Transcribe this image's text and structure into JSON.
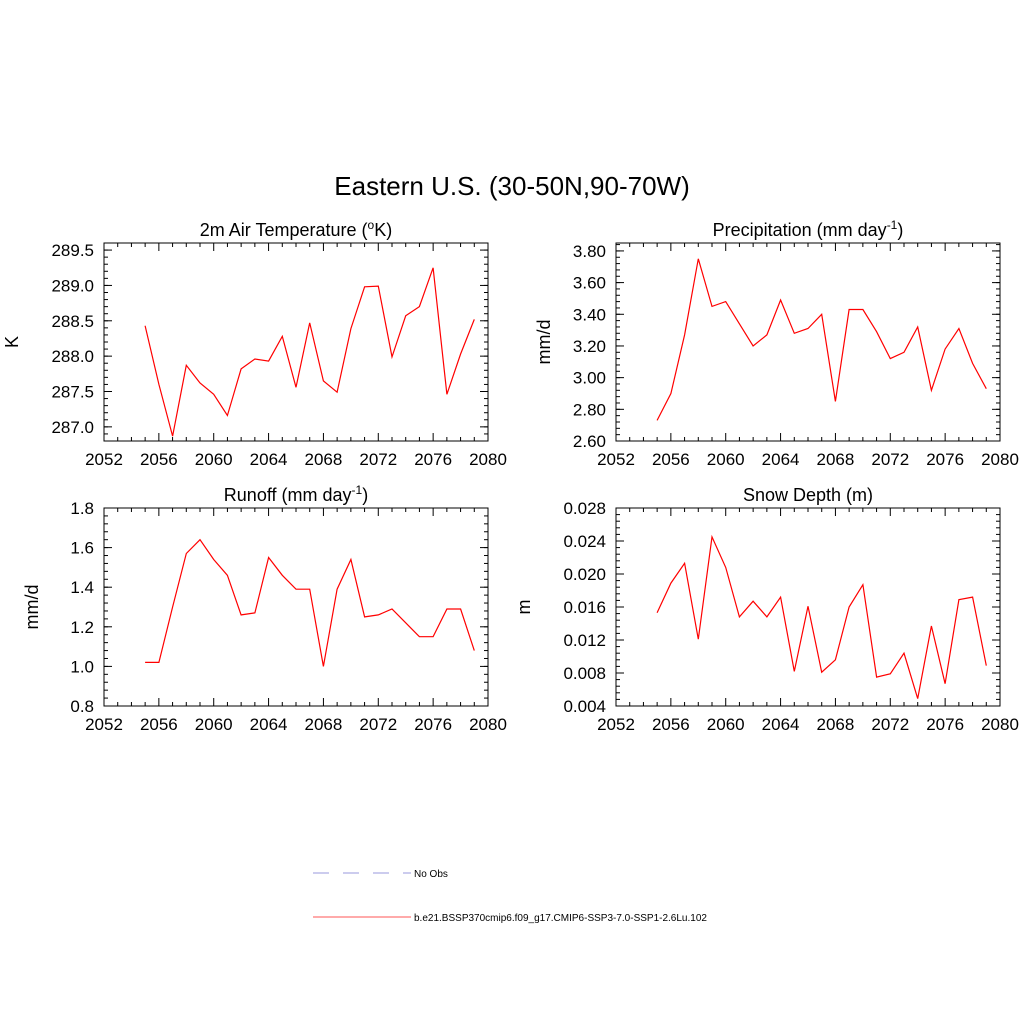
{
  "figure": {
    "title": "Eastern U.S. (30-50N,90-70W)"
  },
  "chart_data": [
    {
      "type": "line",
      "title": "2m Air Temperature (",
      "title_sup": "o",
      "title_tail": "K)",
      "ylabel": "K",
      "xlim": [
        2052,
        2080
      ],
      "ylim": [
        286.8,
        289.6
      ],
      "xticks": [
        2052,
        2056,
        2060,
        2064,
        2068,
        2072,
        2076,
        2080
      ],
      "xtick_labels": [
        "2052",
        "2056",
        "2060",
        "2064",
        "2068",
        "2072",
        "2076",
        "2080"
      ],
      "yticks": [
        287.0,
        287.5,
        288.0,
        288.5,
        289.0,
        289.5
      ],
      "ytick_labels": [
        "287.0",
        "287.5",
        "288.0",
        "288.5",
        "289.0",
        "289.5"
      ],
      "series": [
        {
          "color": "#ff0000",
          "x": [
            2055,
            2056,
            2057,
            2058,
            2059,
            2060,
            2061,
            2062,
            2063,
            2064,
            2065,
            2066,
            2067,
            2068,
            2069,
            2070,
            2071,
            2072,
            2073,
            2074,
            2075,
            2076,
            2077,
            2078,
            2079
          ],
          "y": [
            288.43,
            287.6,
            286.87,
            287.87,
            287.62,
            287.46,
            287.16,
            287.82,
            287.96,
            287.93,
            288.28,
            287.56,
            288.47,
            287.65,
            287.49,
            288.39,
            288.98,
            288.99,
            287.99,
            288.57,
            288.7,
            289.25,
            287.46,
            288.03,
            288.52
          ]
        }
      ]
    },
    {
      "type": "line",
      "title": "Precipitation (mm day",
      "title_sup": "-1",
      "title_tail": ")",
      "ylabel": "mm/d",
      "xlim": [
        2052,
        2080
      ],
      "ylim": [
        2.6,
        3.85
      ],
      "xticks": [
        2052,
        2056,
        2060,
        2064,
        2068,
        2072,
        2076,
        2080
      ],
      "xtick_labels": [
        "2052",
        "2056",
        "2060",
        "2064",
        "2068",
        "2072",
        "2076",
        "2080"
      ],
      "yticks": [
        2.6,
        2.8,
        3.0,
        3.2,
        3.4,
        3.6,
        3.8
      ],
      "ytick_labels": [
        "2.60",
        "2.80",
        "3.00",
        "3.20",
        "3.40",
        "3.60",
        "3.80"
      ],
      "series": [
        {
          "color": "#ff0000",
          "x": [
            2055,
            2056,
            2057,
            2058,
            2059,
            2060,
            2061,
            2062,
            2063,
            2064,
            2065,
            2066,
            2067,
            2068,
            2069,
            2070,
            2071,
            2072,
            2073,
            2074,
            2075,
            2076,
            2077,
            2078,
            2079
          ],
          "y": [
            2.73,
            2.9,
            3.27,
            3.75,
            3.45,
            3.48,
            3.34,
            3.2,
            3.27,
            3.49,
            3.28,
            3.31,
            3.4,
            2.85,
            3.43,
            3.43,
            3.29,
            3.12,
            3.16,
            3.32,
            2.92,
            3.18,
            3.31,
            3.09,
            2.93
          ]
        }
      ]
    },
    {
      "type": "line",
      "title": "Runoff (mm day",
      "title_sup": "-1",
      "title_tail": ")",
      "ylabel": "mm/d",
      "xlim": [
        2052,
        2080
      ],
      "ylim": [
        0.8,
        1.8
      ],
      "xticks": [
        2052,
        2056,
        2060,
        2064,
        2068,
        2072,
        2076,
        2080
      ],
      "xtick_labels": [
        "2052",
        "2056",
        "2060",
        "2064",
        "2068",
        "2072",
        "2076",
        "2080"
      ],
      "yticks": [
        0.8,
        1.0,
        1.2,
        1.4,
        1.6,
        1.8
      ],
      "ytick_labels": [
        "0.8",
        "1.0",
        "1.2",
        "1.4",
        "1.6",
        "1.8"
      ],
      "series": [
        {
          "color": "#ff0000",
          "x": [
            2055,
            2056,
            2057,
            2058,
            2059,
            2060,
            2061,
            2062,
            2063,
            2064,
            2065,
            2066,
            2067,
            2068,
            2069,
            2070,
            2071,
            2072,
            2073,
            2074,
            2075,
            2076,
            2077,
            2078,
            2079
          ],
          "y": [
            1.02,
            1.02,
            1.3,
            1.57,
            1.64,
            1.54,
            1.46,
            1.26,
            1.27,
            1.55,
            1.46,
            1.39,
            1.39,
            1.0,
            1.39,
            1.54,
            1.25,
            1.26,
            1.29,
            1.22,
            1.15,
            1.15,
            1.29,
            1.29,
            1.08
          ]
        }
      ]
    },
    {
      "type": "line",
      "title": "Snow Depth (m)",
      "title_sup": "",
      "title_tail": "",
      "ylabel": "m",
      "xlim": [
        2052,
        2080
      ],
      "ylim": [
        0.004,
        0.028
      ],
      "xticks": [
        2052,
        2056,
        2060,
        2064,
        2068,
        2072,
        2076,
        2080
      ],
      "xtick_labels": [
        "2052",
        "2056",
        "2060",
        "2064",
        "2068",
        "2072",
        "2076",
        "2080"
      ],
      "yticks": [
        0.004,
        0.008,
        0.012,
        0.016,
        0.02,
        0.024,
        0.028
      ],
      "ytick_labels": [
        "0.004",
        "0.008",
        "0.012",
        "0.016",
        "0.020",
        "0.024",
        "0.028"
      ],
      "series": [
        {
          "color": "#ff0000",
          "x": [
            2055,
            2056,
            2057,
            2058,
            2059,
            2060,
            2061,
            2062,
            2063,
            2064,
            2065,
            2066,
            2067,
            2068,
            2069,
            2070,
            2071,
            2072,
            2073,
            2074,
            2075,
            2076,
            2077,
            2078,
            2079
          ],
          "y": [
            0.0153,
            0.0189,
            0.0213,
            0.0121,
            0.0245,
            0.0208,
            0.0148,
            0.0167,
            0.0148,
            0.0172,
            0.0082,
            0.0161,
            0.0081,
            0.0096,
            0.016,
            0.0187,
            0.0075,
            0.0079,
            0.0104,
            0.0049,
            0.0137,
            0.0067,
            0.0169,
            0.0172,
            0.0089
          ]
        }
      ]
    }
  ],
  "legend": {
    "items": [
      {
        "label": "No Obs",
        "color": "#9999dd",
        "dash": true
      },
      {
        "label": "b.e21.BSSP370cmip6.f09_g17.CMIP6-SSP3-7.0-SSP1-2.6Lu.102",
        "color": "#ff5555",
        "dash": false
      }
    ]
  }
}
